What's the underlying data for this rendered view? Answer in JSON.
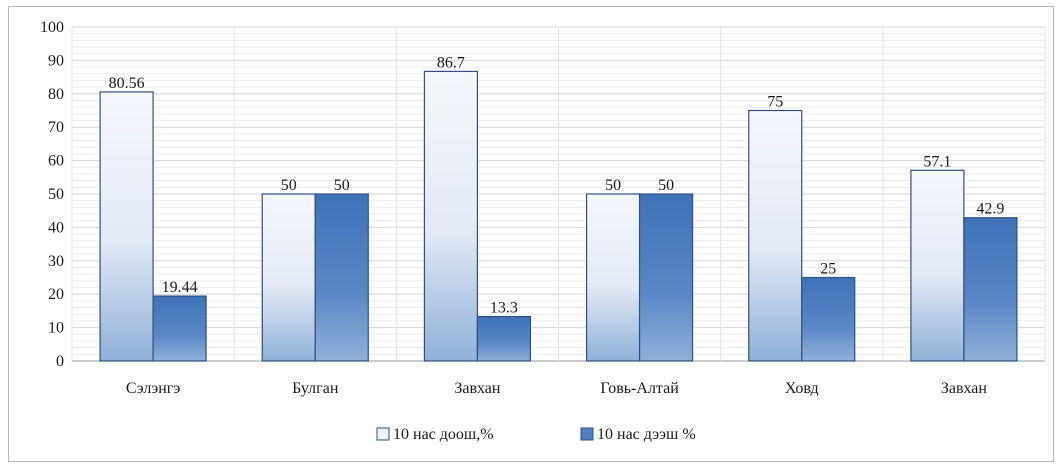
{
  "chart_data": {
    "type": "bar",
    "categories": [
      "Сэлэнгэ",
      "Булган",
      "Завхан",
      "Говь-Алтай",
      "Ховд",
      "Завхан"
    ],
    "series": [
      {
        "name": "10 нас доош,%",
        "values": [
          80.56,
          50,
          86.7,
          50,
          75,
          57.1
        ],
        "labels": [
          "80.56",
          "50",
          "86.7",
          "50",
          "75",
          "57.1"
        ],
        "color": "#dfe7f4"
      },
      {
        "name": "10 нас дээш %",
        "values": [
          19.44,
          50,
          13.3,
          50,
          25,
          42.9
        ],
        "labels": [
          "19.44",
          "50",
          "13.3",
          "50",
          "25",
          "42.9"
        ],
        "color": "#4f7fc0"
      }
    ],
    "y_ticks": [
      "0",
      "10",
      "20",
      "30",
      "40",
      "50",
      "60",
      "70",
      "80",
      "90",
      "100"
    ],
    "ylim": [
      0,
      100
    ],
    "grid": true,
    "legend_position": "bottom-center",
    "title": "",
    "xlabel": "",
    "ylabel": ""
  }
}
